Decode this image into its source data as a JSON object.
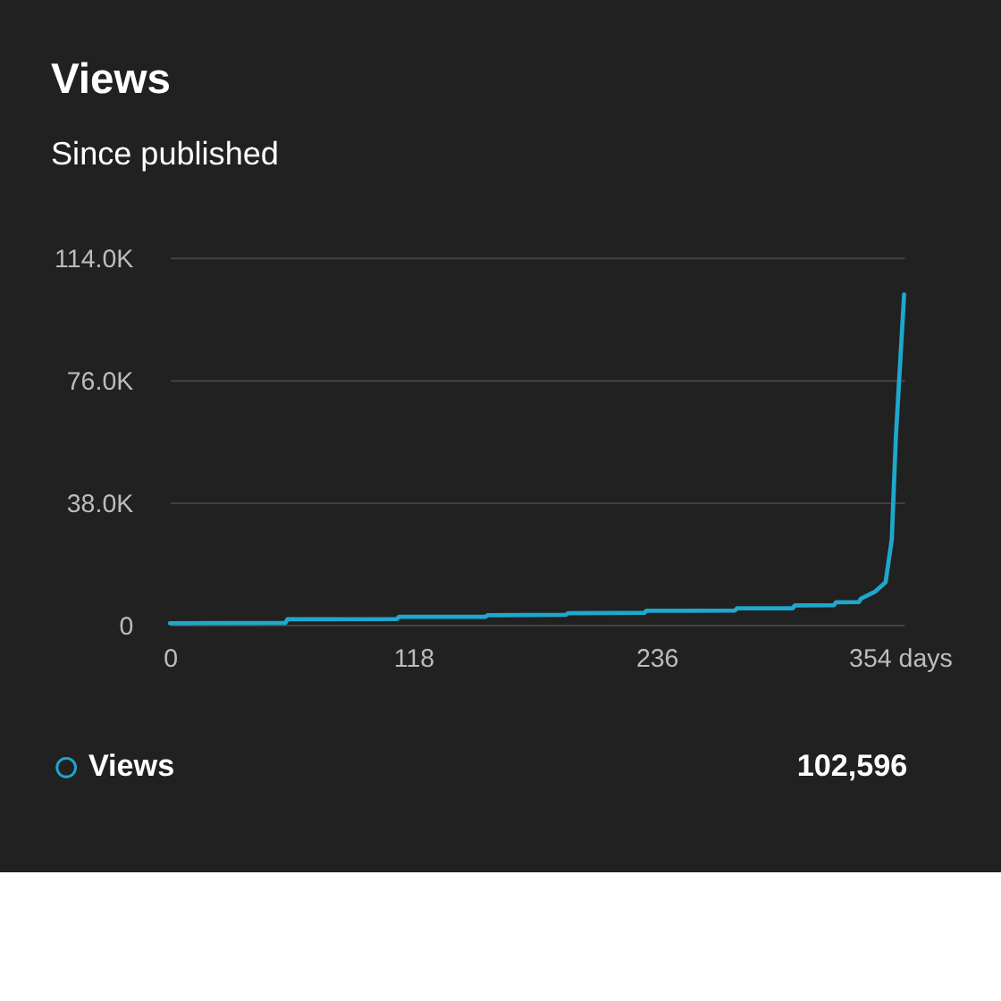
{
  "chart_data": {
    "type": "line",
    "title": "Views",
    "subtitle": "Since published",
    "x": [
      0,
      56,
      57,
      110,
      111,
      153,
      154,
      192,
      193,
      230,
      231,
      274,
      275,
      302,
      303,
      322,
      323,
      334,
      335,
      342,
      347,
      350,
      352,
      356
    ],
    "series": [
      {
        "name": "Views",
        "color": "#1fa7cc",
        "values": [
          500,
          600,
          1700,
          1800,
          2450,
          2500,
          3000,
          3100,
          3600,
          3700,
          4330,
          4400,
          5090,
          5150,
          6030,
          6100,
          6970,
          7050,
          8100,
          10350,
          13200,
          26400,
          58400,
          102596
        ]
      }
    ],
    "xlim": [
      0,
      356
    ],
    "xticks": [
      0,
      118,
      236,
      {
        "value": 354,
        "label": "354 days"
      }
    ],
    "ylim": [
      0,
      114000
    ],
    "yticks": [
      {
        "value": 0,
        "label": "0"
      },
      {
        "value": 38000,
        "label": "38.0K"
      },
      {
        "value": 76000,
        "label": "76.0K"
      },
      {
        "value": 114000,
        "label": "114.0K"
      }
    ],
    "grid": "y",
    "legend": "bottom left",
    "marker": "none",
    "line_style": "solid",
    "annotations": [
      "102,596"
    ]
  }
}
